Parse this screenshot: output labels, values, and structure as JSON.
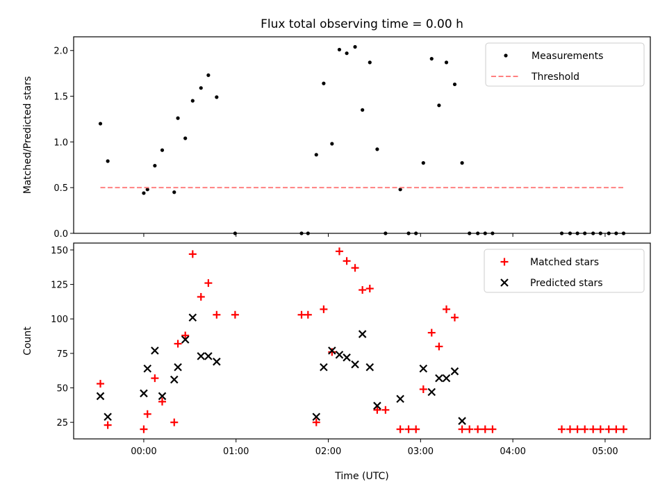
{
  "chart_data": [
    {
      "type": "scatter",
      "title": "Flux total observing time = 0.00 h",
      "xlabel": "",
      "ylabel": "Matched/Predicted stars",
      "ylim": [
        0,
        2.15
      ],
      "xlim": [
        -0.76,
        5.49
      ],
      "y_ticks": [
        {
          "value": 0,
          "label": "0.0"
        },
        {
          "value": 0.5,
          "label": "0.5"
        },
        {
          "value": 1.0,
          "label": "1.0"
        },
        {
          "value": 1.5,
          "label": "1.5"
        },
        {
          "value": 2.0,
          "label": "2.0"
        }
      ],
      "x_ticks": [
        0,
        1,
        2,
        3,
        4,
        5
      ],
      "legend": {
        "position": "top-right",
        "entries": [
          "Measurements",
          "Threshold"
        ]
      },
      "series": [
        {
          "name": "Measurements",
          "color": "#000000",
          "x": [
            -0.47,
            -0.39,
            0.0,
            0.04,
            0.12,
            0.2,
            0.33,
            0.37,
            0.45,
            0.53,
            0.62,
            0.7,
            0.79,
            0.99,
            1.71,
            1.78,
            1.87,
            1.95,
            2.04,
            2.12,
            2.2,
            2.29,
            2.37,
            2.45,
            2.53,
            2.62,
            2.78,
            2.87,
            2.95,
            3.03,
            3.12,
            3.2,
            3.28,
            3.37,
            3.45,
            3.53,
            3.62,
            3.7,
            3.78,
            4.53,
            4.62,
            4.7,
            4.78,
            4.87,
            4.95,
            5.04,
            5.12,
            5.2
          ],
          "y": [
            1.2,
            0.79,
            0.44,
            0.48,
            0.74,
            0.91,
            0.45,
            1.26,
            1.04,
            1.45,
            1.59,
            1.73,
            1.49,
            0.0,
            0.0,
            0.0,
            0.86,
            1.64,
            0.98,
            2.01,
            1.97,
            2.04,
            1.35,
            1.87,
            0.92,
            0.0,
            0.48,
            0.0,
            0.0,
            0.77,
            1.91,
            1.4,
            1.87,
            1.63,
            0.77,
            0.0,
            0.0,
            0.0,
            0.0,
            0.0,
            0.0,
            0.0,
            0.0,
            0.0,
            0.0,
            0.0,
            0.0,
            0.0
          ]
        },
        {
          "name": "Threshold",
          "color": "#ff8080",
          "x": [
            -0.47,
            5.2
          ],
          "y": [
            0.5,
            0.5
          ]
        }
      ]
    },
    {
      "type": "scatter",
      "title": "",
      "xlabel": "Time (UTC)",
      "ylabel": "Count",
      "ylim": [
        13,
        155
      ],
      "xlim": [
        -0.76,
        5.49
      ],
      "y_ticks": [
        {
          "value": 25,
          "label": "25"
        },
        {
          "value": 50,
          "label": "50"
        },
        {
          "value": 75,
          "label": "75"
        },
        {
          "value": 100,
          "label": "100"
        },
        {
          "value": 125,
          "label": "125"
        },
        {
          "value": 150,
          "label": "150"
        }
      ],
      "x_ticks": [
        {
          "value": 0,
          "label": "00:00"
        },
        {
          "value": 1,
          "label": "01:00"
        },
        {
          "value": 2,
          "label": "02:00"
        },
        {
          "value": 3,
          "label": "03:00"
        },
        {
          "value": 4,
          "label": "04:00"
        },
        {
          "value": 5,
          "label": "05:00"
        }
      ],
      "legend": {
        "position": "top-right",
        "entries": [
          "Matched stars",
          "Predicted stars"
        ]
      },
      "series": [
        {
          "name": "Matched stars",
          "color": "#ff0000",
          "marker": "+",
          "x": [
            -0.47,
            -0.39,
            0.0,
            0.04,
            0.12,
            0.2,
            0.33,
            0.37,
            0.45,
            0.53,
            0.62,
            0.7,
            0.79,
            0.99,
            1.71,
            1.78,
            1.87,
            1.95,
            2.04,
            2.12,
            2.2,
            2.29,
            2.37,
            2.45,
            2.53,
            2.62,
            2.78,
            2.87,
            2.95,
            3.03,
            3.12,
            3.2,
            3.28,
            3.37,
            3.45,
            3.53,
            3.62,
            3.7,
            3.78,
            4.53,
            4.62,
            4.7,
            4.78,
            4.87,
            4.95,
            5.04,
            5.12,
            5.2
          ],
          "y": [
            53,
            23,
            20,
            31,
            57,
            40,
            25,
            82,
            88,
            147,
            116,
            126,
            103,
            103,
            103,
            103,
            25,
            107,
            76,
            149,
            142,
            137,
            121,
            122,
            34,
            34,
            20,
            20,
            20,
            49,
            90,
            80,
            107,
            101,
            20,
            20,
            20,
            20,
            20,
            20,
            20,
            20,
            20,
            20,
            20,
            20,
            20,
            20
          ]
        },
        {
          "name": "Predicted stars",
          "color": "#000000",
          "marker": "x",
          "x": [
            -0.47,
            -0.39,
            0.0,
            0.04,
            0.12,
            0.2,
            0.33,
            0.37,
            0.45,
            0.53,
            0.62,
            0.7,
            0.79,
            1.87,
            1.95,
            2.04,
            2.12,
            2.2,
            2.29,
            2.37,
            2.45,
            2.53,
            2.78,
            3.03,
            3.12,
            3.2,
            3.28,
            3.37,
            3.45
          ],
          "y": [
            44,
            29,
            46,
            64,
            77,
            44,
            56,
            65,
            85,
            101,
            73,
            73,
            69,
            29,
            65,
            77,
            74,
            72,
            67,
            89,
            65,
            37,
            42,
            64,
            47,
            57,
            57,
            62,
            26
          ]
        }
      ]
    }
  ]
}
